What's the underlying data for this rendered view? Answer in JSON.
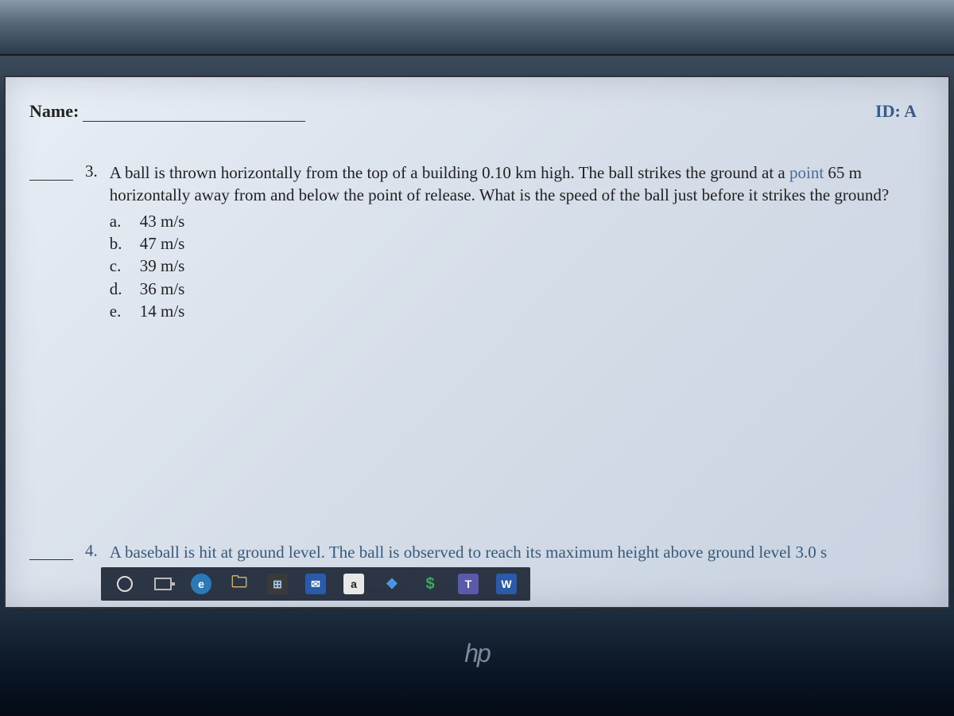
{
  "header": {
    "name_label": "Name:",
    "id_label": "ID: A"
  },
  "question3": {
    "number": "3.",
    "text_part1": "A ball is thrown horizontally from the top of a building 0.10 km high. The ball strikes the ground at a ",
    "text_accent1": "point",
    "text_part2": "65 m horizontally away from and below the point of release. What is the speed of the ball just before it strikes the ground?",
    "options": [
      {
        "letter": "a.",
        "text": "43 m/s"
      },
      {
        "letter": "b.",
        "text": "47 m/s"
      },
      {
        "letter": "c.",
        "text": "39 m/s"
      },
      {
        "letter": "d.",
        "text": "36 m/s"
      },
      {
        "letter": "e.",
        "text": "14 m/s"
      }
    ]
  },
  "question4": {
    "number": "4.",
    "text": "A baseball is hit at ground level. The ball is observed to reach its maximum height above ground level 3.0 s"
  },
  "taskbar": {
    "items": [
      {
        "name": "cortana",
        "glyph": "",
        "bg": "transparent",
        "fg": "#ddd"
      },
      {
        "name": "taskview",
        "glyph": "",
        "bg": "transparent",
        "fg": "#bbb"
      },
      {
        "name": "edge",
        "glyph": "e",
        "bg": "#2a7ab8",
        "fg": "#fff"
      },
      {
        "name": "explorer",
        "glyph": "📁",
        "bg": "transparent",
        "fg": "#e8c070"
      },
      {
        "name": "store",
        "glyph": "⊞",
        "bg": "#3a3a3a",
        "fg": "#aaccee"
      },
      {
        "name": "mail",
        "glyph": "✉",
        "bg": "#2a5aaa",
        "fg": "#fff"
      },
      {
        "name": "amazon",
        "glyph": "a",
        "bg": "#e8e8e8",
        "fg": "#222"
      },
      {
        "name": "dropbox",
        "glyph": "❖",
        "bg": "transparent",
        "fg": "#4a9ae8"
      },
      {
        "name": "dollar",
        "glyph": "$",
        "bg": "transparent",
        "fg": "#3aaa5a"
      },
      {
        "name": "teams",
        "glyph": "T",
        "bg": "#5a5aaa",
        "fg": "#fff"
      },
      {
        "name": "word",
        "glyph": "W",
        "bg": "#2a5aaa",
        "fg": "#fff"
      }
    ]
  },
  "logo": "hp",
  "colors": {
    "paper_bg": "#dde5f0",
    "text": "#222222",
    "accent_text": "#4a6a9a",
    "taskbar_bg": "rgba(20,30,45,0.88)"
  }
}
